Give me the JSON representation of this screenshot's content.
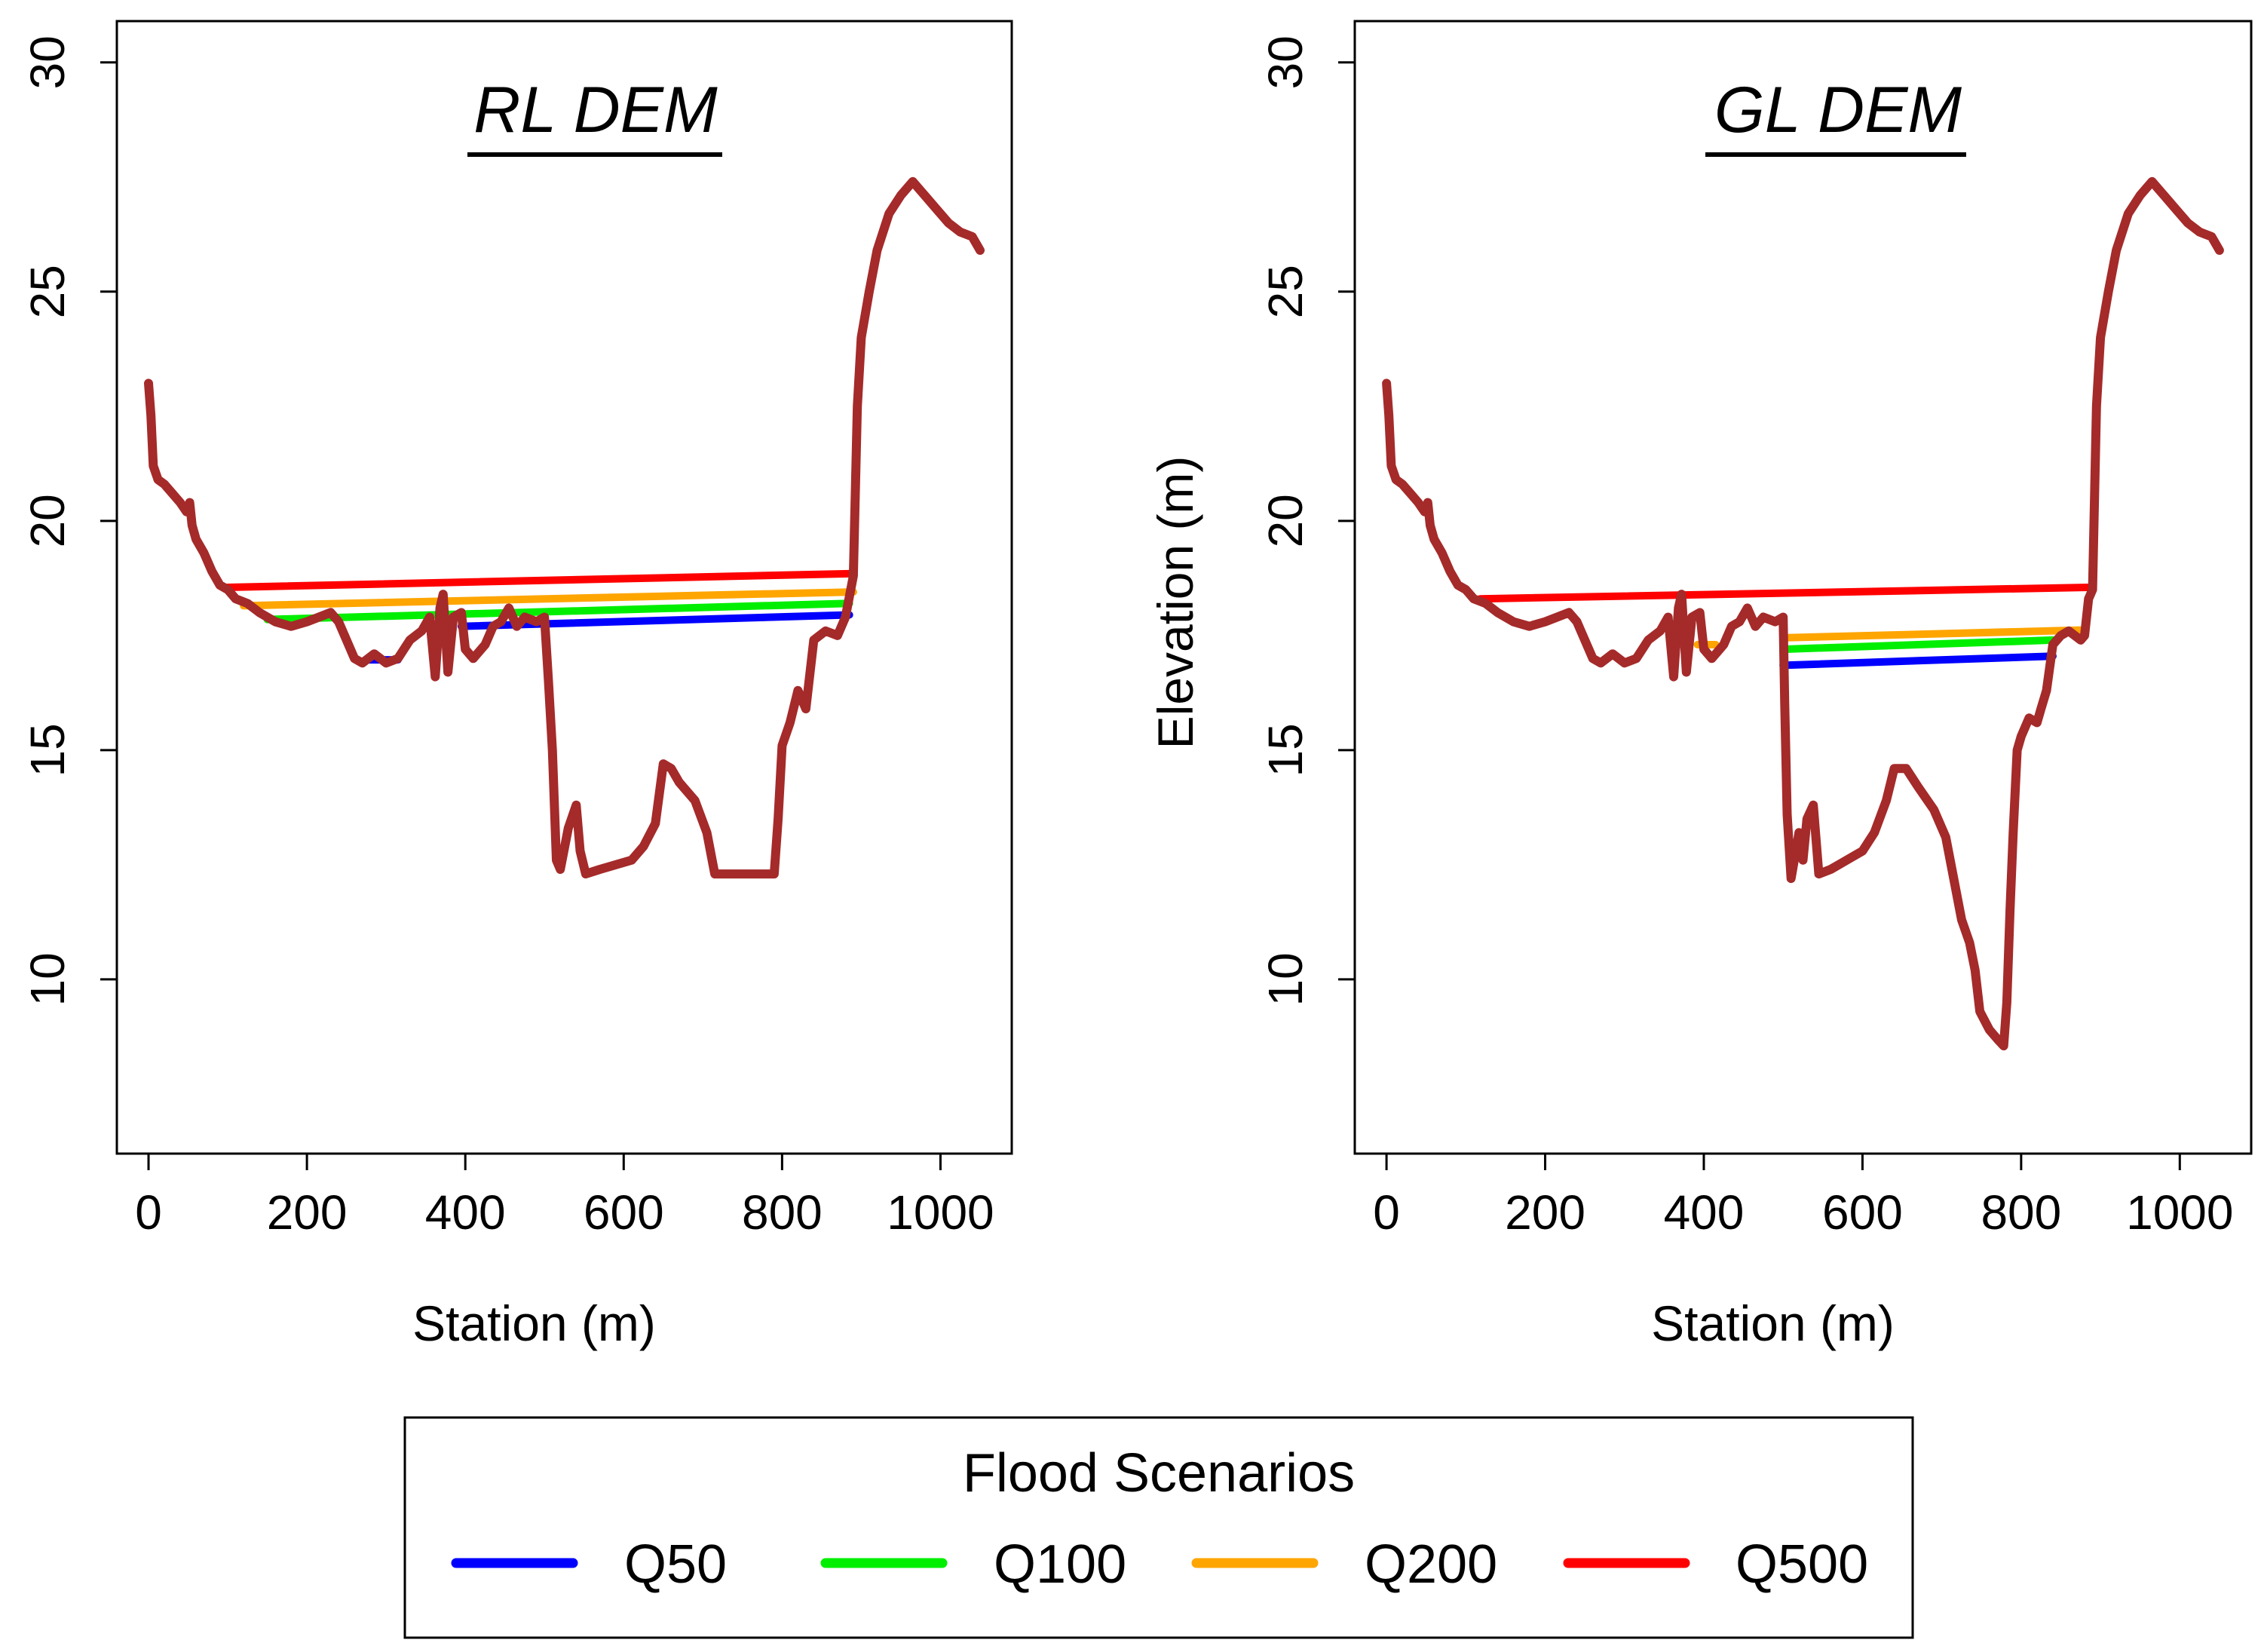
{
  "chart_data": [
    {
      "type": "line",
      "title": "RL DEM",
      "xlabel": "Station (m)",
      "ylabel": "",
      "xlim": [
        -40,
        1090
      ],
      "ylim": [
        6.2,
        30.9
      ],
      "xticks": [
        0,
        200,
        400,
        600,
        800,
        1000
      ],
      "yticks": [
        10,
        15,
        20,
        25,
        30
      ],
      "terrain": {
        "name": "Terrain",
        "color": "#a52a2a",
        "points": [
          [
            0,
            23.0
          ],
          [
            3,
            22.3
          ],
          [
            6,
            21.2
          ],
          [
            12,
            20.9
          ],
          [
            20,
            20.8
          ],
          [
            30,
            20.6
          ],
          [
            40,
            20.4
          ],
          [
            48,
            20.2
          ],
          [
            52,
            20.4
          ],
          [
            55,
            19.9
          ],
          [
            60,
            19.6
          ],
          [
            70,
            19.3
          ],
          [
            80,
            18.9
          ],
          [
            90,
            18.6
          ],
          [
            100,
            18.5
          ],
          [
            110,
            18.3
          ],
          [
            125,
            18.2
          ],
          [
            140,
            18.0
          ],
          [
            160,
            17.8
          ],
          [
            180,
            17.7
          ],
          [
            200,
            17.8
          ],
          [
            215,
            17.9
          ],
          [
            230,
            18.0
          ],
          [
            240,
            17.8
          ],
          [
            250,
            17.4
          ],
          [
            260,
            17.0
          ],
          [
            270,
            16.9
          ],
          [
            285,
            17.1
          ],
          [
            300,
            16.9
          ],
          [
            315,
            17.0
          ],
          [
            330,
            17.4
          ],
          [
            345,
            17.6
          ],
          [
            355,
            17.9
          ],
          [
            362,
            16.6
          ],
          [
            368,
            18.1
          ],
          [
            372,
            18.4
          ],
          [
            378,
            16.7
          ],
          [
            385,
            17.9
          ],
          [
            395,
            18.0
          ],
          [
            400,
            17.2
          ],
          [
            410,
            17.0
          ],
          [
            425,
            17.3
          ],
          [
            435,
            17.7
          ],
          [
            445,
            17.8
          ],
          [
            455,
            18.1
          ],
          [
            465,
            17.7
          ],
          [
            475,
            17.9
          ],
          [
            490,
            17.8
          ],
          [
            500,
            17.9
          ],
          [
            505,
            16.5
          ],
          [
            510,
            15.0
          ],
          [
            515,
            12.6
          ],
          [
            520,
            12.4
          ],
          [
            530,
            13.3
          ],
          [
            540,
            13.8
          ],
          [
            545,
            12.8
          ],
          [
            552,
            12.3
          ],
          [
            570,
            12.4
          ],
          [
            590,
            12.5
          ],
          [
            610,
            12.6
          ],
          [
            625,
            12.9
          ],
          [
            640,
            13.4
          ],
          [
            650,
            14.7
          ],
          [
            660,
            14.6
          ],
          [
            670,
            14.3
          ],
          [
            690,
            13.9
          ],
          [
            705,
            13.2
          ],
          [
            715,
            12.3
          ],
          [
            740,
            12.3
          ],
          [
            760,
            12.3
          ],
          [
            790,
            12.3
          ],
          [
            795,
            13.5
          ],
          [
            800,
            15.1
          ],
          [
            810,
            15.6
          ],
          [
            820,
            16.3
          ],
          [
            830,
            15.9
          ],
          [
            840,
            17.4
          ],
          [
            855,
            17.6
          ],
          [
            870,
            17.5
          ],
          [
            880,
            17.9
          ],
          [
            890,
            18.8
          ],
          [
            895,
            22.5
          ],
          [
            900,
            24.0
          ],
          [
            910,
            25.0
          ],
          [
            920,
            25.9
          ],
          [
            935,
            26.7
          ],
          [
            950,
            27.1
          ],
          [
            965,
            27.4
          ],
          [
            980,
            27.1
          ],
          [
            995,
            26.8
          ],
          [
            1010,
            26.5
          ],
          [
            1025,
            26.3
          ],
          [
            1040,
            26.2
          ],
          [
            1050,
            25.9
          ]
        ]
      },
      "series": [
        {
          "name": "Q50",
          "color": "#0000ff",
          "segments": [
            [
              [
                275,
                16.97
              ],
              [
                315,
                16.97
              ]
            ],
            [
              [
                395,
                17.7
              ],
              [
                885,
                17.95
              ]
            ]
          ]
        },
        {
          "name": "Q100",
          "color": "#00ee00",
          "segments": [
            [
              [
                150,
                17.85
              ],
              [
                885,
                18.2
              ]
            ]
          ]
        },
        {
          "name": "Q200",
          "color": "#ffa500",
          "segments": [
            [
              [
                120,
                18.15
              ],
              [
                890,
                18.45
              ]
            ]
          ]
        },
        {
          "name": "Q500",
          "color": "#ff0000",
          "segments": [
            [
              [
                100,
                18.55
              ],
              [
                890,
                18.85
              ]
            ]
          ]
        }
      ]
    },
    {
      "type": "line",
      "title": "GL DEM",
      "xlabel": "Station (m)",
      "ylabel": "Elevation (m)",
      "xlim": [
        -40,
        1090
      ],
      "ylim": [
        6.2,
        30.9
      ],
      "xticks": [
        0,
        200,
        400,
        600,
        800,
        1000
      ],
      "yticks": [
        10,
        15,
        20,
        25,
        30
      ],
      "terrain": {
        "name": "Terrain",
        "color": "#a52a2a",
        "points": [
          [
            0,
            23.0
          ],
          [
            3,
            22.3
          ],
          [
            6,
            21.2
          ],
          [
            12,
            20.9
          ],
          [
            20,
            20.8
          ],
          [
            30,
            20.6
          ],
          [
            40,
            20.4
          ],
          [
            48,
            20.2
          ],
          [
            52,
            20.4
          ],
          [
            55,
            19.9
          ],
          [
            60,
            19.6
          ],
          [
            70,
            19.3
          ],
          [
            80,
            18.9
          ],
          [
            90,
            18.6
          ],
          [
            100,
            18.5
          ],
          [
            110,
            18.3
          ],
          [
            125,
            18.2
          ],
          [
            140,
            18.0
          ],
          [
            160,
            17.8
          ],
          [
            180,
            17.7
          ],
          [
            200,
            17.8
          ],
          [
            215,
            17.9
          ],
          [
            230,
            18.0
          ],
          [
            240,
            17.8
          ],
          [
            250,
            17.4
          ],
          [
            260,
            17.0
          ],
          [
            270,
            16.9
          ],
          [
            285,
            17.1
          ],
          [
            300,
            16.9
          ],
          [
            315,
            17.0
          ],
          [
            330,
            17.4
          ],
          [
            345,
            17.6
          ],
          [
            355,
            17.9
          ],
          [
            362,
            16.6
          ],
          [
            368,
            18.1
          ],
          [
            372,
            18.4
          ],
          [
            378,
            16.7
          ],
          [
            385,
            17.9
          ],
          [
            395,
            18.0
          ],
          [
            400,
            17.2
          ],
          [
            410,
            17.0
          ],
          [
            425,
            17.3
          ],
          [
            435,
            17.7
          ],
          [
            445,
            17.8
          ],
          [
            455,
            18.1
          ],
          [
            465,
            17.7
          ],
          [
            475,
            17.9
          ],
          [
            490,
            17.8
          ],
          [
            500,
            17.9
          ],
          [
            502,
            16.0
          ],
          [
            505,
            13.6
          ],
          [
            510,
            12.2
          ],
          [
            515,
            12.7
          ],
          [
            520,
            13.2
          ],
          [
            525,
            12.6
          ],
          [
            530,
            13.5
          ],
          [
            538,
            13.8
          ],
          [
            545,
            12.3
          ],
          [
            560,
            12.4
          ],
          [
            580,
            12.6
          ],
          [
            600,
            12.8
          ],
          [
            615,
            13.2
          ],
          [
            630,
            13.9
          ],
          [
            640,
            14.6
          ],
          [
            655,
            14.6
          ],
          [
            670,
            14.2
          ],
          [
            690,
            13.7
          ],
          [
            705,
            13.1
          ],
          [
            715,
            12.2
          ],
          [
            725,
            11.3
          ],
          [
            735,
            10.8
          ],
          [
            742,
            10.2
          ],
          [
            748,
            9.3
          ],
          [
            760,
            8.9
          ],
          [
            770,
            8.7
          ],
          [
            778,
            8.55
          ],
          [
            782,
            9.5
          ],
          [
            786,
            11.5
          ],
          [
            790,
            13.2
          ],
          [
            795,
            15.0
          ],
          [
            800,
            15.3
          ],
          [
            810,
            15.7
          ],
          [
            820,
            15.6
          ],
          [
            825,
            15.9
          ],
          [
            832,
            16.3
          ],
          [
            840,
            17.3
          ],
          [
            850,
            17.5
          ],
          [
            860,
            17.6
          ],
          [
            875,
            17.4
          ],
          [
            880,
            17.5
          ],
          [
            885,
            18.3
          ],
          [
            890,
            18.5
          ],
          [
            895,
            22.5
          ],
          [
            900,
            24.0
          ],
          [
            910,
            25.0
          ],
          [
            920,
            25.9
          ],
          [
            935,
            26.7
          ],
          [
            950,
            27.1
          ],
          [
            965,
            27.4
          ],
          [
            980,
            27.1
          ],
          [
            995,
            26.8
          ],
          [
            1010,
            26.5
          ],
          [
            1025,
            26.3
          ],
          [
            1040,
            26.2
          ],
          [
            1050,
            25.9
          ]
        ]
      },
      "series": [
        {
          "name": "Q50",
          "color": "#0000ff",
          "segments": [
            [
              [
                500,
                16.85
              ],
              [
                840,
                17.05
              ]
            ]
          ]
        },
        {
          "name": "Q100",
          "color": "#00ee00",
          "segments": [
            [
              [
                500,
                17.2
              ],
              [
                840,
                17.4
              ]
            ]
          ]
        },
        {
          "name": "Q200",
          "color": "#ffa500",
          "segments": [
            [
              [
                392,
                17.3
              ],
              [
                415,
                17.3
              ]
            ],
            [
              [
                500,
                17.45
              ],
              [
                880,
                17.62
              ]
            ]
          ]
        },
        {
          "name": "Q500",
          "color": "#ff0000",
          "segments": [
            [
              [
                118,
                18.3
              ],
              [
                885,
                18.55
              ]
            ]
          ]
        }
      ]
    }
  ],
  "legend": {
    "title": "Flood Scenarios",
    "items": [
      {
        "label": "Q50",
        "color": "#0000ff"
      },
      {
        "label": "Q100",
        "color": "#00ee00"
      },
      {
        "label": "Q200",
        "color": "#ffa500"
      },
      {
        "label": "Q500",
        "color": "#ff0000"
      }
    ]
  }
}
